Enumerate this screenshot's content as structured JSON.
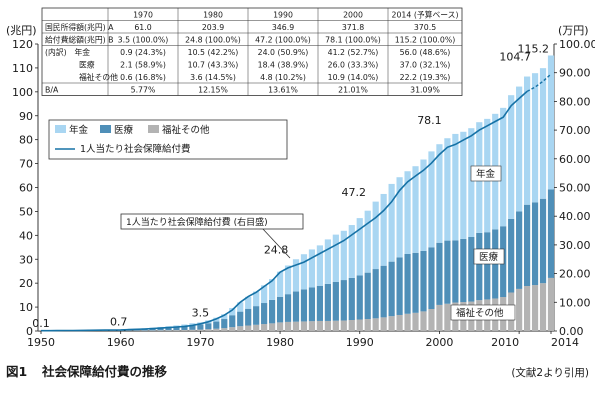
{
  "chart_data": {
    "type": "bar",
    "stacked": true,
    "title": "社会保障給付費の推移",
    "figure_label": "図1",
    "source_note": "(文献2より引用)",
    "y_unit_left": "(兆円)",
    "y_unit_right": "(万円)",
    "ylim": [
      0,
      120
    ],
    "ylim_right": [
      0,
      100
    ],
    "yticks": [
      "0",
      "10",
      "20",
      "30",
      "40",
      "50",
      "60",
      "70",
      "80",
      "90",
      "100",
      "110",
      "120"
    ],
    "yticks_right": [
      "0.00",
      "10.00",
      "20.00",
      "30.00",
      "40.00",
      "50.00",
      "60.00",
      "70.00",
      "80.00",
      "90.00",
      "100.00"
    ],
    "xticks": [
      "1950",
      "1960",
      "1970",
      "1980",
      "1990",
      "2000",
      "2010",
      "2014"
    ],
    "legend": {
      "pension": "年金",
      "medical": "医療",
      "welfare": "福祉その他",
      "per_capita": "1人当たり社会保障給付費"
    },
    "colors": {
      "pension": "#a9d6f2",
      "medical": "#4f8fb8",
      "welfare": "#b3b3b3",
      "per_capita": "#1672a6"
    },
    "x": [
      1950,
      1951,
      1952,
      1953,
      1954,
      1955,
      1956,
      1957,
      1958,
      1959,
      1960,
      1961,
      1962,
      1963,
      1964,
      1965,
      1966,
      1967,
      1968,
      1969,
      1970,
      1971,
      1972,
      1973,
      1974,
      1975,
      1976,
      1977,
      1978,
      1979,
      1980,
      1981,
      1982,
      1983,
      1984,
      1985,
      1986,
      1987,
      1988,
      1989,
      1990,
      1991,
      1992,
      1993,
      1994,
      1995,
      1996,
      1997,
      1998,
      1999,
      2000,
      2001,
      2002,
      2003,
      2004,
      2005,
      2006,
      2007,
      2008,
      2009,
      2010,
      2011,
      2012,
      2013,
      2014
    ],
    "series": [
      {
        "name": "福祉その他",
        "values": [
          0.05,
          0.06,
          0.07,
          0.08,
          0.09,
          0.1,
          0.11,
          0.12,
          0.13,
          0.14,
          0.15,
          0.17,
          0.2,
          0.23,
          0.26,
          0.3,
          0.34,
          0.38,
          0.43,
          0.5,
          0.6,
          0.75,
          0.95,
          1.2,
          1.6,
          2.0,
          2.3,
          2.6,
          2.9,
          3.2,
          3.6,
          3.8,
          3.9,
          4.0,
          4.1,
          4.2,
          4.2,
          4.3,
          4.4,
          4.6,
          4.8,
          5.0,
          5.3,
          5.7,
          6.2,
          6.7,
          7.2,
          7.6,
          8.2,
          9.2,
          10.9,
          11.4,
          11.9,
          12.1,
          12.3,
          12.9,
          13.2,
          13.6,
          14.2,
          16.1,
          17.6,
          18.8,
          19.2,
          20.0,
          22.2
        ]
      },
      {
        "name": "医療",
        "values": [
          0.03,
          0.04,
          0.06,
          0.08,
          0.1,
          0.12,
          0.14,
          0.17,
          0.2,
          0.23,
          0.28,
          0.35,
          0.45,
          0.6,
          0.78,
          0.95,
          1.1,
          1.25,
          1.45,
          1.75,
          2.1,
          2.5,
          3.0,
          3.8,
          5.0,
          6.1,
          7.0,
          7.8,
          8.8,
          9.8,
          10.7,
          11.6,
          12.6,
          13.4,
          14.1,
          14.7,
          15.5,
          16.2,
          16.9,
          17.6,
          18.4,
          19.4,
          20.6,
          21.6,
          22.8,
          24.1,
          25.0,
          25.1,
          25.3,
          25.8,
          26.0,
          26.4,
          26.0,
          26.4,
          27.0,
          28.1,
          28.1,
          28.9,
          29.6,
          30.8,
          32.4,
          34.0,
          34.6,
          35.3,
          37.0
        ]
      },
      {
        "name": "年金",
        "values": [
          0.02,
          0.03,
          0.04,
          0.05,
          0.06,
          0.07,
          0.08,
          0.1,
          0.12,
          0.14,
          0.17,
          0.2,
          0.25,
          0.3,
          0.35,
          0.45,
          0.55,
          0.7,
          0.85,
          1.0,
          0.9,
          1.2,
          1.6,
          2.0,
          3.0,
          3.9,
          5.0,
          6.1,
          7.4,
          8.7,
          10.5,
          12.0,
          13.5,
          14.7,
          15.9,
          16.9,
          18.6,
          19.8,
          20.6,
          22.1,
          24.0,
          25.9,
          28.2,
          30.0,
          32.5,
          33.5,
          34.6,
          36.2,
          38.2,
          40.1,
          41.2,
          42.8,
          44.5,
          44.8,
          45.5,
          46.3,
          47.4,
          48.3,
          49.5,
          51.7,
          52.2,
          53.6,
          54.0,
          54.6,
          56.0
        ]
      },
      {
        "name": "1人当たり社会保障給付費",
        "axis": "right",
        "values": [
          0.1,
          0.11,
          0.14,
          0.16,
          0.19,
          0.21,
          0.24,
          0.27,
          0.3,
          0.34,
          0.4,
          0.48,
          0.58,
          0.7,
          0.85,
          1.0,
          1.2,
          1.4,
          1.6,
          1.95,
          2.5,
          3.2,
          4.2,
          5.5,
          7.3,
          10.0,
          12.0,
          13.5,
          15.5,
          17.5,
          20.5,
          22.0,
          23.0,
          24.0,
          25.5,
          27.0,
          28.5,
          30.0,
          31.5,
          33.5,
          35.5,
          37.5,
          39.5,
          42.0,
          45.0,
          49.0,
          52.0,
          54.0,
          56.0,
          58.5,
          61.5,
          64.0,
          65.0,
          66.5,
          68.0,
          70.0,
          71.5,
          73.0,
          74.5,
          78.5,
          81.0,
          83.5,
          85.0,
          87.0,
          89.5
        ]
      }
    ],
    "totals": [
      {
        "x": 1950,
        "value": 0.1
      },
      {
        "x": 1960,
        "value": 0.7
      },
      {
        "x": 1970,
        "value": 3.5
      },
      {
        "x": 1980,
        "value": 24.8
      },
      {
        "x": 1990,
        "value": 47.2
      },
      {
        "x": 2000,
        "value": 78.1
      },
      {
        "x": 2010,
        "value": 104.7
      },
      {
        "x": 2014,
        "value": 115.2
      }
    ],
    "annotations": {
      "per_capita_label": "1人当たり社会保障給付費 (右目盛)",
      "pension_label": "年金",
      "medical_label": "医療",
      "welfare_label": "福祉その他"
    },
    "grid": false,
    "legend_placement": "upper-left",
    "table": {
      "columns": [
        "",
        "1970",
        "1980",
        "1990",
        "2000",
        "2014 (予算ベース)"
      ],
      "rows": [
        [
          "国民所得額(兆円) A",
          "61.0",
          "203.9",
          "346.9",
          "371.8",
          "370.5"
        ],
        [
          "給付費総額(兆円) B",
          "3.5 (100.0%)",
          "24.8 (100.0%)",
          "47.2 (100.0%)",
          "78.1 (100.0%)",
          "115.2 (100.0%)"
        ],
        [
          "(内訳)　年金",
          "0.9 (24.3%)",
          "10.5 (42.2%)",
          "24.0 (50.9%)",
          "41.2 (52.7%)",
          "56.0 (48.6%)"
        ],
        [
          "医療",
          "2.1 (58.9%)",
          "10.7 (43.3%)",
          "18.4 (38.9%)",
          "26.0 (33.3%)",
          "37.0 (32.1%)"
        ],
        [
          "福祉その他",
          "0.6 (16.8%)",
          "3.6 (14.5%)",
          "4.8 (10.2%)",
          "10.9 (14.0%)",
          "22.2 (19.3%)"
        ],
        [
          "B/A",
          "5.77%",
          "12.15%",
          "13.61%",
          "21.01%",
          "31.09%"
        ]
      ]
    }
  }
}
